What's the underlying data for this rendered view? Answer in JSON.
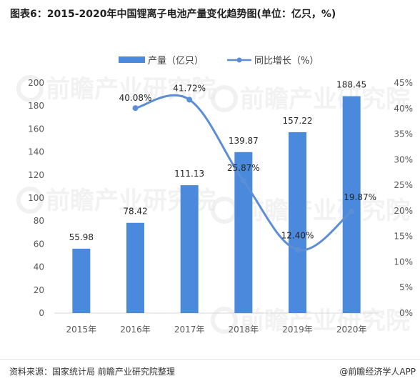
{
  "title": "图表6：2015-2020年中国锂离子电池产量变化趋势图(单位：亿只，%)",
  "footer": {
    "source": "资料来源：国家统计局 前瞻产业研究院整理",
    "brand": "@前瞻经济学人APP"
  },
  "watermark_text": "前瞻产业研究院",
  "colors": {
    "bar": "#4a89dc",
    "line": "#5b8ed6",
    "axis": "#d9d9d9"
  },
  "chart_data": {
    "type": "bar",
    "categories": [
      "2015年",
      "2016年",
      "2017年",
      "2018年",
      "2019年",
      "2020年"
    ],
    "series": [
      {
        "name": "产量（亿只）",
        "type": "bar",
        "axis": "left",
        "values": [
          55.98,
          78.42,
          111.13,
          139.87,
          157.22,
          188.45
        ],
        "labels": [
          "55.98",
          "78.42",
          "111.13",
          "139.87",
          "157.22",
          "188.45"
        ]
      },
      {
        "name": "同比增长（%）",
        "type": "line",
        "axis": "right",
        "values": [
          null,
          40.08,
          41.72,
          25.87,
          12.4,
          19.87
        ],
        "labels": [
          "",
          "40.08%",
          "41.72%",
          "25.87%",
          "12.40%",
          "19.87%"
        ]
      }
    ],
    "left_axis": {
      "min": 0,
      "max": 200,
      "ticks": [
        "0",
        "20",
        "40",
        "60",
        "80",
        "100",
        "120",
        "140",
        "160",
        "180",
        "200"
      ]
    },
    "right_axis": {
      "min": 0,
      "max": 45,
      "ticks": [
        "0%",
        "5%",
        "10%",
        "15%",
        "20%",
        "25%",
        "30%",
        "35%",
        "40%",
        "45%"
      ]
    },
    "legend_position": "top-center",
    "grid": false
  }
}
